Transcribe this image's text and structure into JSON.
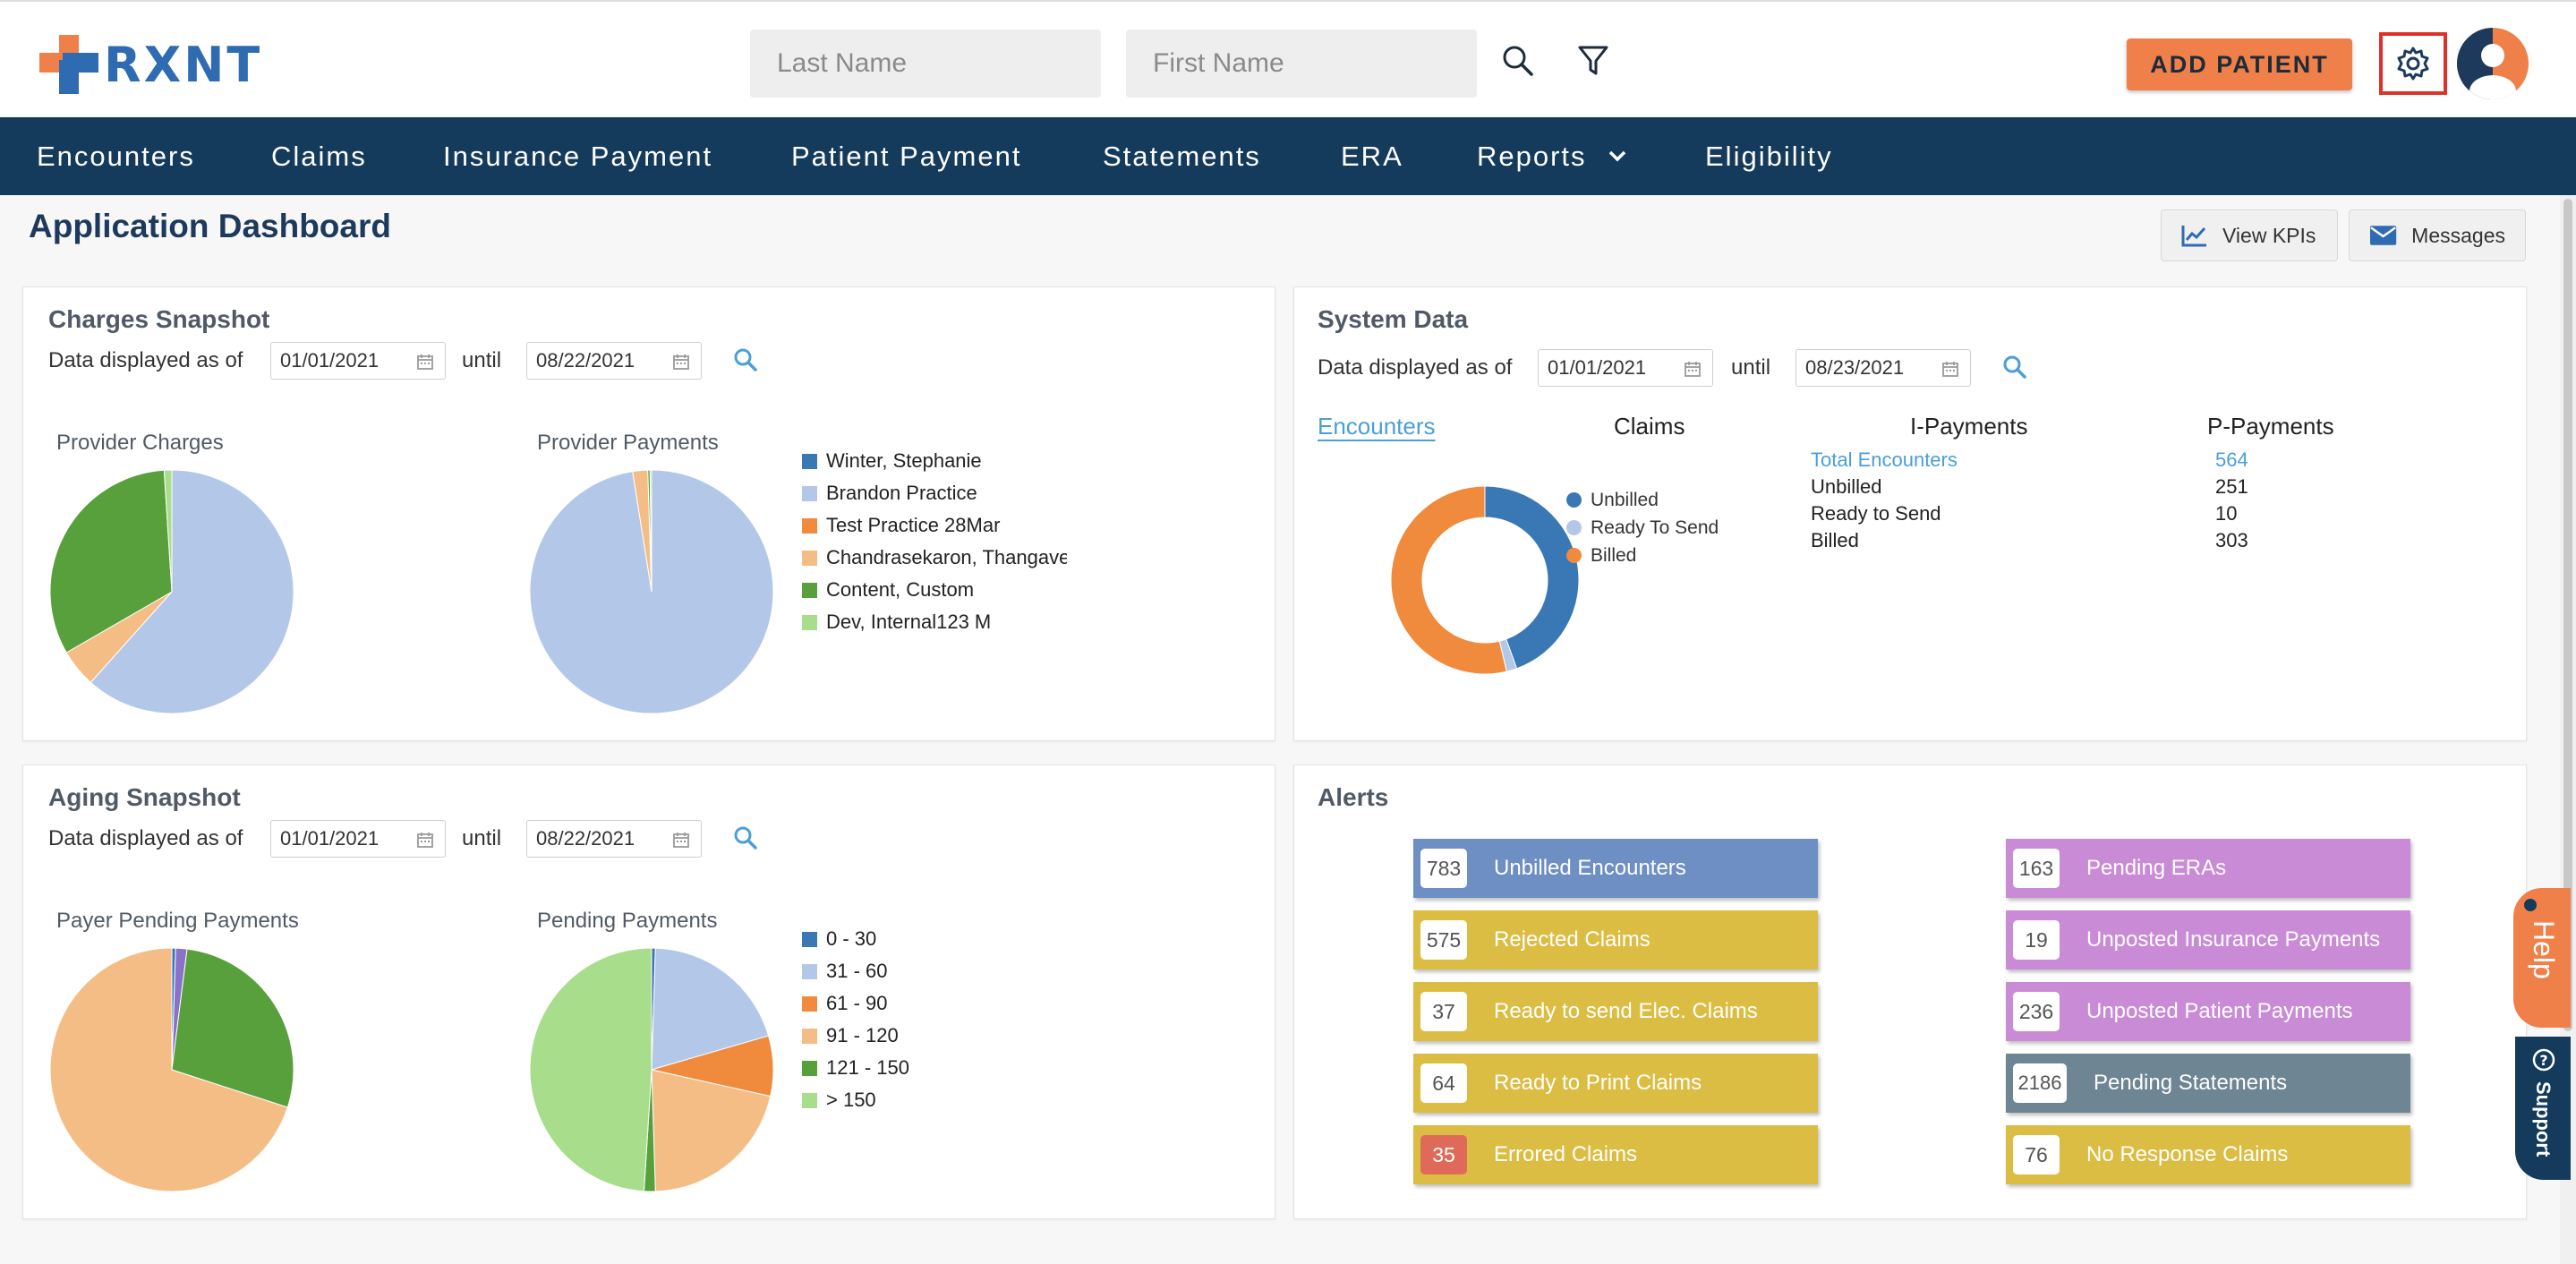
{
  "header": {
    "logo_text": "RXNT",
    "last_name_placeholder": "Last Name",
    "first_name_placeholder": "First Name",
    "add_patient_label": "ADD PATIENT"
  },
  "nav": {
    "items": [
      "Encounters",
      "Claims",
      "Insurance Payment",
      "Patient Payment",
      "Statements",
      "ERA",
      "Reports",
      "Eligibility"
    ]
  },
  "page": {
    "title": "Application Dashboard",
    "view_kpis_label": "View KPIs",
    "messages_label": "Messages"
  },
  "charges": {
    "title": "Charges Snapshot",
    "as_of_label": "Data displayed as of",
    "until_label": "until",
    "from_date": "01/01/2021",
    "to_date": "08/22/2021",
    "provider_charges_label": "Provider Charges",
    "provider_payments_label": "Provider Payments",
    "legend": [
      "Winter, Stephanie",
      "Brandon Practice",
      "Test Practice 28Mar",
      "Chandrasekaron, Thangavel",
      "Content, Custom",
      "Dev, Internal123 M"
    ]
  },
  "system": {
    "title": "System Data",
    "as_of_label": "Data displayed as of",
    "until_label": "until",
    "from_date": "01/01/2021",
    "to_date": "08/23/2021",
    "tabs": [
      "Encounters",
      "Claims",
      "I-Payments",
      "P-Payments"
    ],
    "donut_legend": [
      "Unbilled",
      "Ready To Send",
      "Billed"
    ],
    "stats": [
      {
        "label": "Total Encounters",
        "value": "564"
      },
      {
        "label": "Unbilled",
        "value": "251"
      },
      {
        "label": "Ready to Send",
        "value": "10"
      },
      {
        "label": "Billed",
        "value": "303"
      }
    ]
  },
  "aging": {
    "title": "Aging Snapshot",
    "as_of_label": "Data displayed as of",
    "until_label": "until",
    "from_date": "01/01/2021",
    "to_date": "08/22/2021",
    "payer_pending_label": "Payer Pending Payments",
    "pending_payments_label": "Pending Payments",
    "legend": [
      "0 - 30",
      "31 - 60",
      "61 - 90",
      "91 - 120",
      "121 - 150",
      "> 150"
    ]
  },
  "alerts": {
    "title": "Alerts",
    "left": [
      {
        "count": "783",
        "label": "Unbilled Encounters"
      },
      {
        "count": "575",
        "label": "Rejected Claims"
      },
      {
        "count": "37",
        "label": "Ready to send Elec. Claims"
      },
      {
        "count": "64",
        "label": "Ready to Print Claims"
      },
      {
        "count": "35",
        "label": "Errored Claims"
      }
    ],
    "right": [
      {
        "count": "163",
        "label": "Pending ERAs"
      },
      {
        "count": "19",
        "label": "Unposted Insurance Payments"
      },
      {
        "count": "236",
        "label": "Unposted Patient Payments"
      },
      {
        "count": "2186",
        "label": "Pending Statements"
      },
      {
        "count": "76",
        "label": "No Response Claims"
      }
    ]
  },
  "side": {
    "help_label": "Help",
    "support_label": "Support"
  },
  "colors": {
    "navy": "#143a5c",
    "orange": "#f0804a",
    "blue": "#2f6bb1",
    "light_blue": "#4a9fd6",
    "alert_blue": "#6e8fc3",
    "alert_yellow": "#dcbd44",
    "alert_purple": "#c98bd6",
    "alert_slate": "#6e8593",
    "alert_red_badge": "#e06a5a"
  },
  "chart_data": [
    {
      "type": "pie",
      "title": "Provider Charges",
      "categories": [
        "Winter, Stephanie",
        "Brandon Practice",
        "Test Practice 28Mar",
        "Chandrasekaron, Thangavel",
        "Content, Custom",
        "Dev, Internal123 M"
      ],
      "values": [
        0,
        61,
        0,
        5,
        32,
        1
      ],
      "colors": [
        "#3a78b5",
        "#b3c8e8",
        "#f08a3c",
        "#f5bd86",
        "#57a03b",
        "#a8dd8c"
      ]
    },
    {
      "type": "pie",
      "title": "Provider Payments",
      "categories": [
        "Winter, Stephanie",
        "Brandon Practice",
        "Test Practice 28Mar",
        "Chandrasekaron, Thangavel",
        "Content, Custom",
        "Dev, Internal123 M"
      ],
      "values": [
        0,
        97.5,
        0,
        2,
        0.3,
        0.2
      ],
      "colors": [
        "#3a78b5",
        "#b3c8e8",
        "#f08a3c",
        "#f5bd86",
        "#57a03b",
        "#a8dd8c"
      ]
    },
    {
      "type": "pie",
      "title": "System Data - Encounters",
      "categories": [
        "Unbilled",
        "Ready To Send",
        "Billed"
      ],
      "values": [
        251,
        10,
        303
      ],
      "colors": [
        "#3a78b5",
        "#b3c8e8",
        "#f08a3c"
      ]
    },
    {
      "type": "pie",
      "title": "Payer Pending Payments",
      "categories": [
        "Blue",
        "Purple",
        "Green",
        "Peach"
      ],
      "values": [
        0.5,
        1.5,
        28,
        70
      ],
      "colors": [
        "#3a78b5",
        "#8a72c8",
        "#57a03b",
        "#f5bd86"
      ]
    },
    {
      "type": "pie",
      "title": "Pending Payments",
      "categories": [
        "0 - 30",
        "31 - 60",
        "61 - 90",
        "91 - 120",
        "121 - 150",
        "> 150"
      ],
      "values": [
        0.5,
        20,
        8,
        21,
        1.5,
        49
      ],
      "colors": [
        "#3a78b5",
        "#b3c8e8",
        "#f08a3c",
        "#f5bd86",
        "#57a03b",
        "#a8dd8c"
      ]
    }
  ]
}
